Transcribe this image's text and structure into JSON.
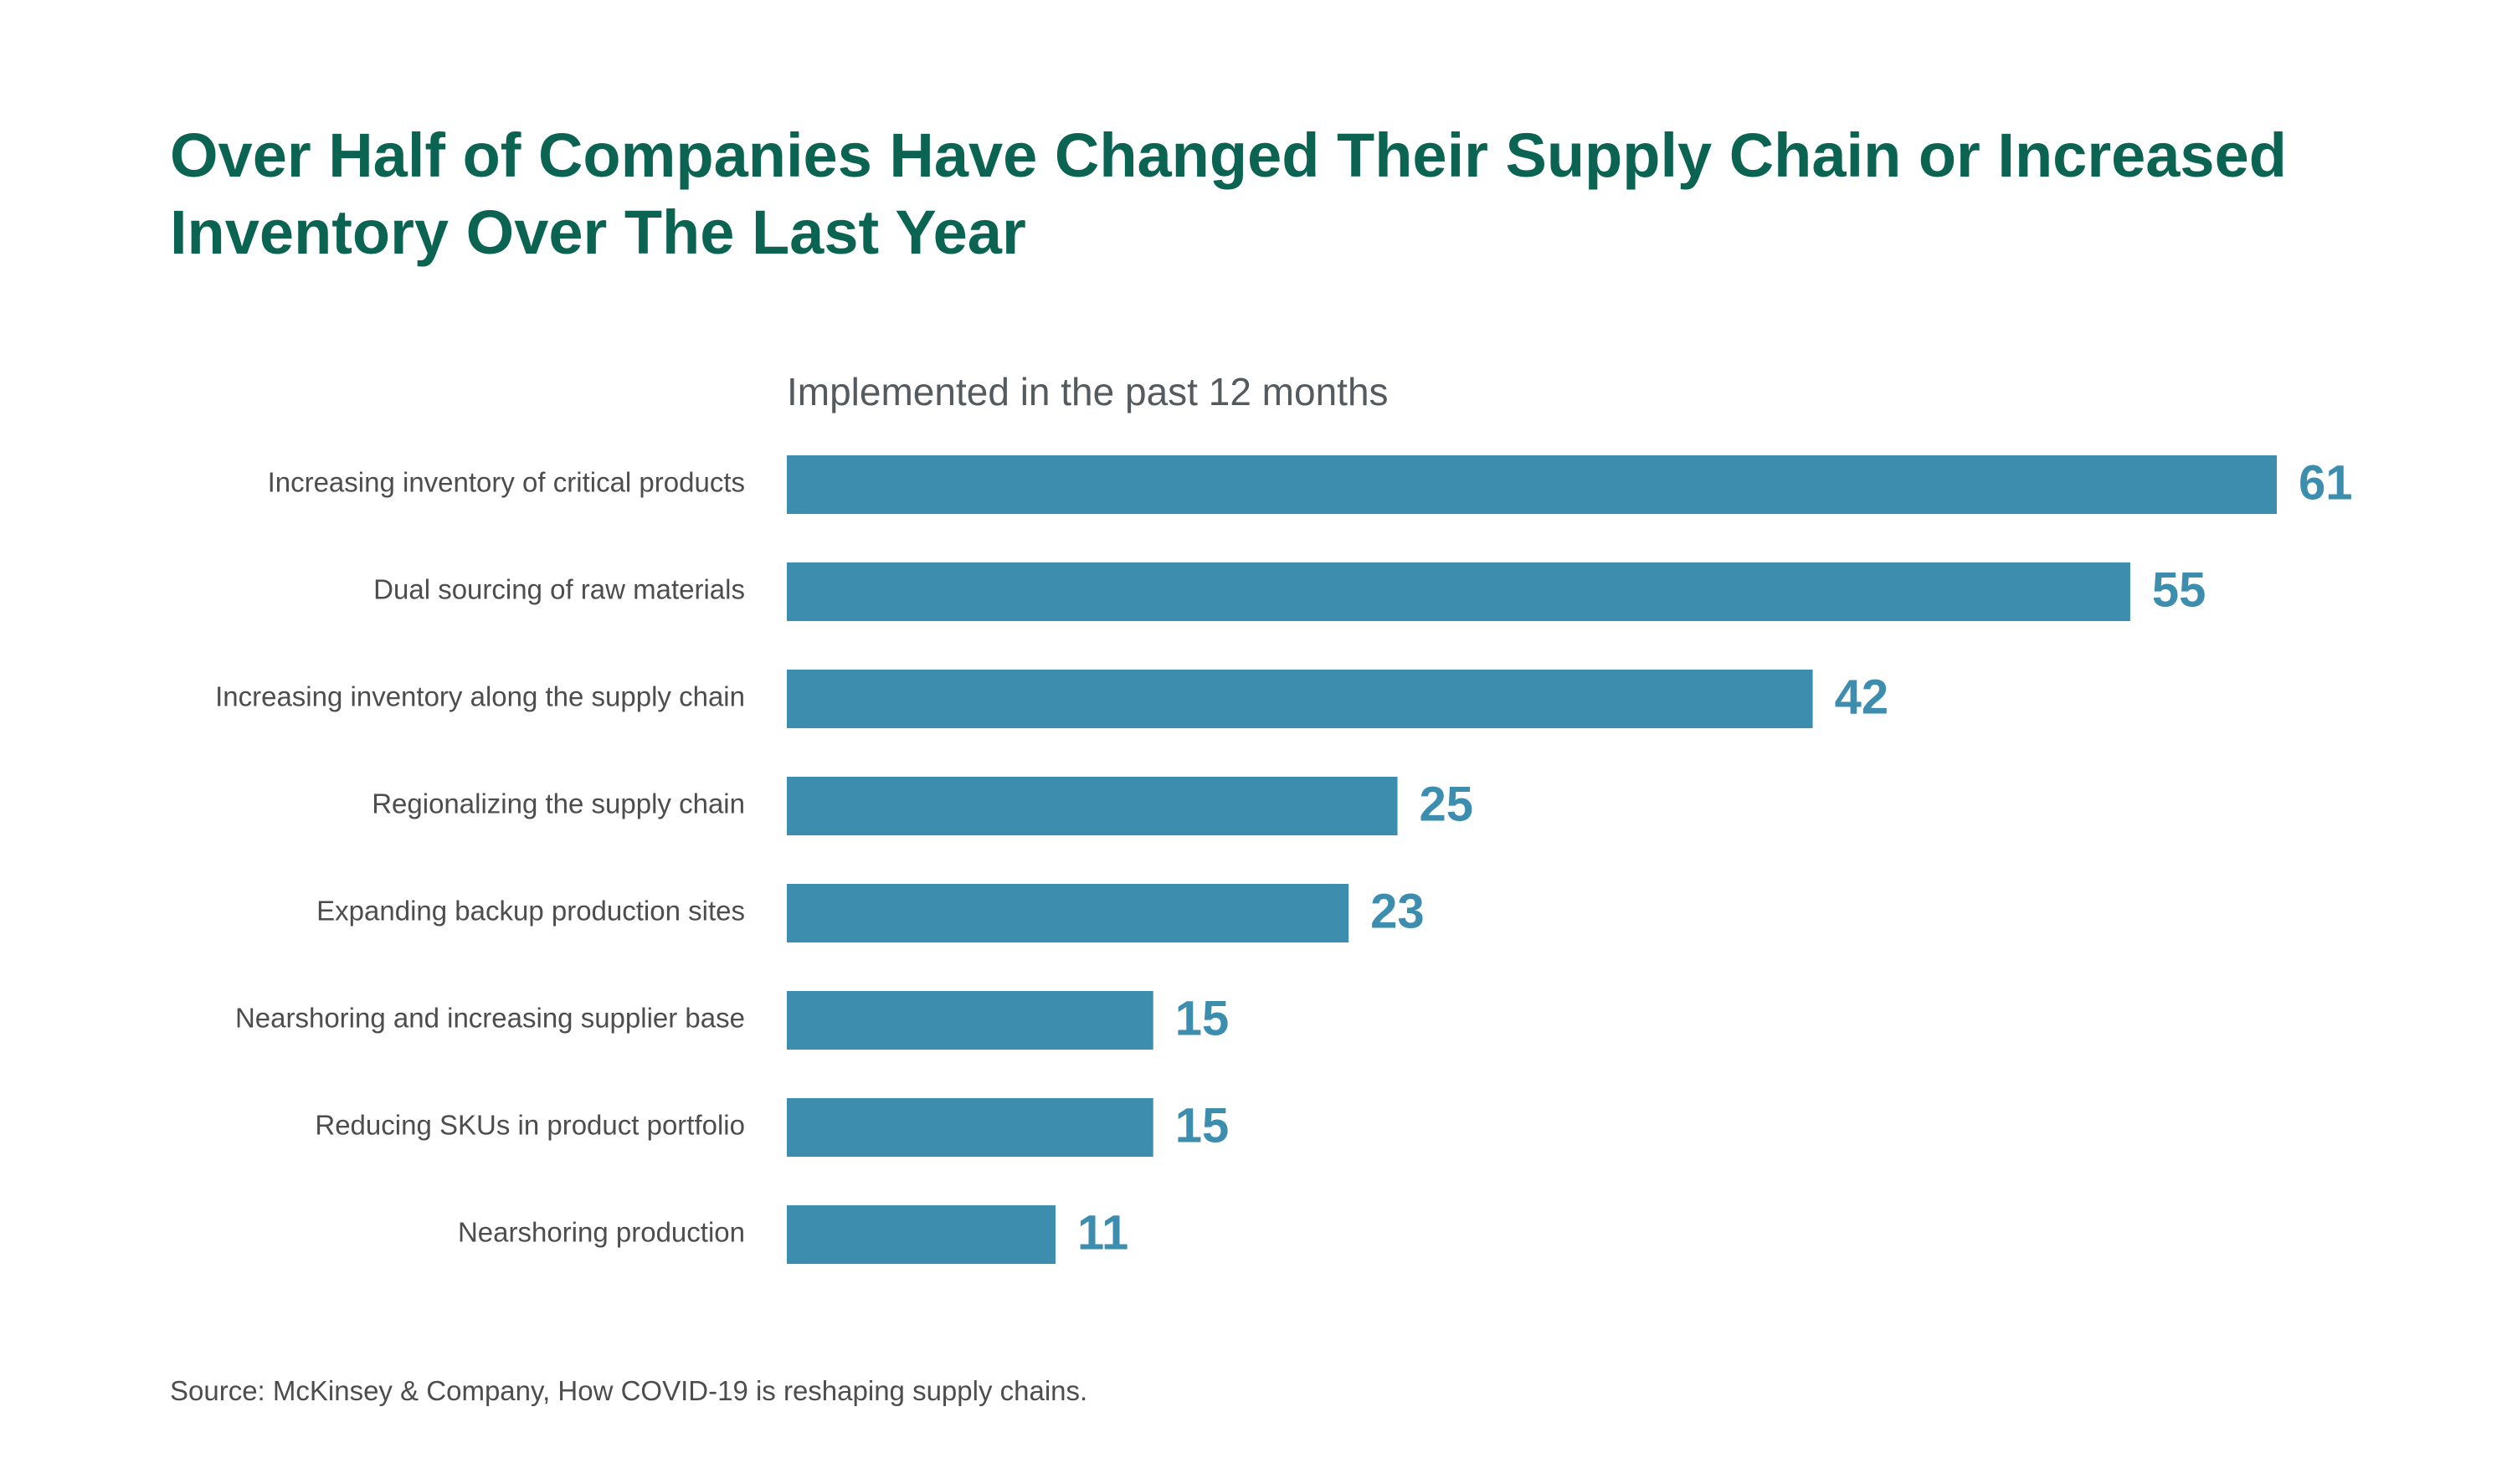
{
  "title": "Over Half of Companies Have Changed Their Supply Chain or Increased Inventory Over The Last Year",
  "source": "Source: McKinsey & Company, How COVID-19 is reshaping supply chains.",
  "colors": {
    "title": "#0b6352",
    "bar": "#3d8daf",
    "value_label": "#3d8daf",
    "category_label": "#4d4d4d"
  },
  "chart_data": {
    "type": "bar",
    "orientation": "horizontal",
    "subtitle": "Implemented in the past 12 months",
    "categories": [
      "Increasing inventory of critical products",
      "Dual sourcing of raw materials",
      "Increasing inventory along the supply chain",
      "Regionalizing the supply chain",
      "Expanding backup production sites",
      "Nearshoring and increasing supplier base",
      "Reducing SKUs in product portfolio",
      "Nearshoring production"
    ],
    "values": [
      61,
      55,
      42,
      25,
      23,
      15,
      15,
      11
    ],
    "xlim": [
      0,
      61
    ],
    "data_labels": true,
    "grid": false,
    "legend": "none"
  }
}
